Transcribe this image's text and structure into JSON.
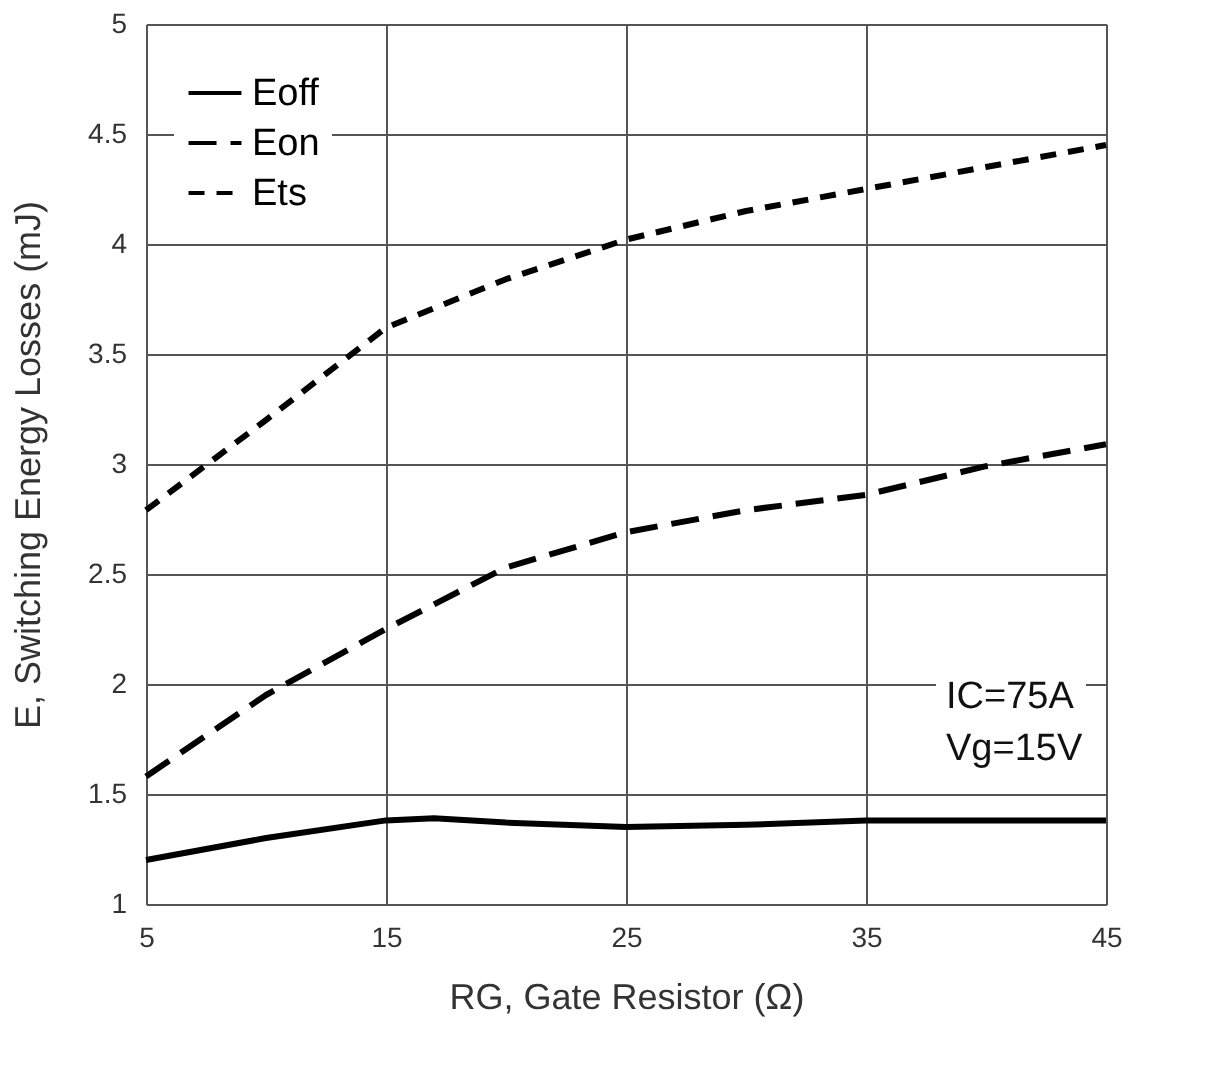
{
  "chart_data": {
    "type": "line",
    "xlabel": "RG, Gate Resistor (Ω)",
    "ylabel": "E, Switching Energy Losses (mJ)",
    "xlim": [
      5,
      45
    ],
    "xticks": [
      5,
      15,
      25,
      35,
      45
    ],
    "ylim": [
      1,
      5
    ],
    "yticks": [
      1,
      1.5,
      2,
      2.5,
      3,
      3.5,
      4,
      4.5,
      5
    ],
    "grid": true,
    "legend": "top left",
    "series": [
      {
        "name": "Eoff",
        "color": "#000000",
        "line_style": "solid",
        "x": [
          5,
          10,
          15,
          17,
          20,
          25,
          30,
          35,
          40,
          45
        ],
        "values": [
          1.2,
          1.3,
          1.38,
          1.39,
          1.37,
          1.35,
          1.36,
          1.38,
          1.38,
          1.38
        ]
      },
      {
        "name": "Eon",
        "color": "#000000",
        "line_style": "dashed",
        "x": [
          5,
          10,
          15,
          20,
          25,
          30,
          35,
          40,
          45
        ],
        "values": [
          1.58,
          1.95,
          2.25,
          2.53,
          2.69,
          2.79,
          2.86,
          2.99,
          3.09
        ]
      },
      {
        "name": "Ets",
        "color": "#000000",
        "line_style": "dashed",
        "x": [
          5,
          10,
          15,
          20,
          25,
          30,
          35,
          40,
          45
        ],
        "values": [
          2.79,
          3.2,
          3.62,
          3.84,
          4.02,
          4.15,
          4.25,
          4.35,
          4.45
        ]
      }
    ],
    "annotations": [
      "IC=75A",
      "Vg=15V"
    ]
  }
}
